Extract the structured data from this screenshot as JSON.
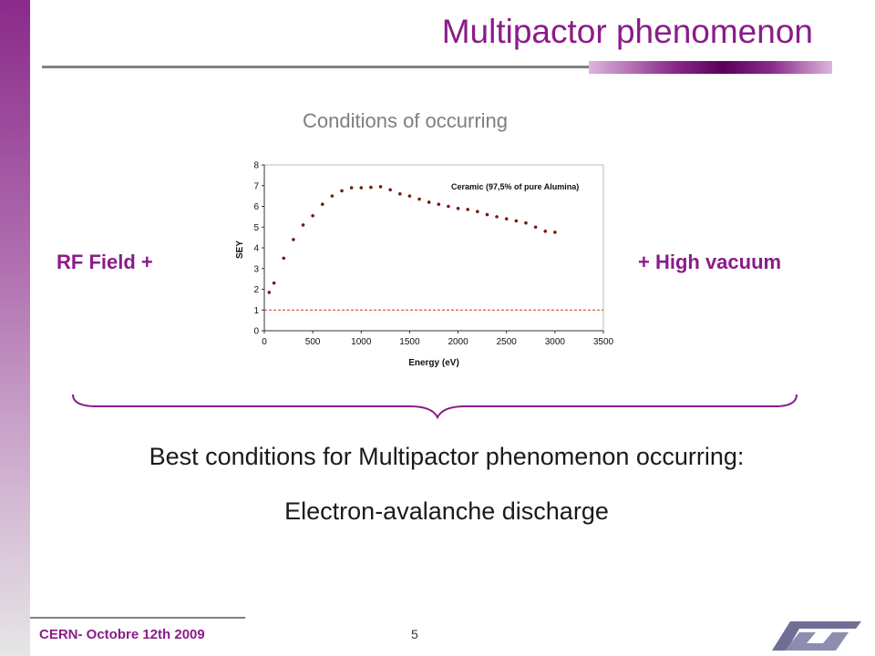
{
  "slide": {
    "title": "Multipactor phenomenon",
    "subtitle": "Conditions of occurring",
    "left_label": "RF Field  +",
    "right_label": "+  High vacuum",
    "conclusion_line1": "Best conditions for Multipactor phenomenon occurring:",
    "conclusion_line2": "Electron-avalanche discharge",
    "footer": "CERN- Octobre 12th 2009",
    "page_number": "5"
  },
  "colors": {
    "accent": "#8a1c8a",
    "data_points": "#7a1a14",
    "threshold_line": "#d9342b"
  },
  "chart_data": {
    "type": "scatter",
    "annotation": "Ceramic (97,5% of pure Alumina)",
    "xlabel": "Energy (eV)",
    "ylabel": "SEY",
    "xlim": [
      0,
      3500
    ],
    "ylim": [
      0,
      8
    ],
    "x_ticks": [
      0,
      500,
      1000,
      1500,
      2000,
      2500,
      3000,
      3500
    ],
    "y_ticks": [
      0,
      1,
      2,
      3,
      4,
      5,
      6,
      7,
      8
    ],
    "grid": false,
    "reference_line": {
      "y": 1,
      "style": "dashed"
    },
    "series": [
      {
        "x": [
          50,
          100,
          200,
          300,
          400,
          500,
          600,
          700,
          800,
          900,
          1000,
          1100,
          1200,
          1300,
          1400,
          1500,
          1600,
          1700,
          1800,
          1900,
          2000,
          2100,
          2200,
          2300,
          2400,
          2500,
          2600,
          2700,
          2800,
          2900,
          3000
        ],
        "y": [
          1.85,
          2.3,
          3.5,
          4.4,
          5.1,
          5.55,
          6.1,
          6.5,
          6.75,
          6.9,
          6.9,
          6.92,
          6.95,
          6.8,
          6.6,
          6.5,
          6.35,
          6.2,
          6.1,
          6.0,
          5.9,
          5.85,
          5.75,
          5.6,
          5.5,
          5.4,
          5.3,
          5.2,
          5.0,
          4.8,
          4.75
        ]
      }
    ]
  }
}
